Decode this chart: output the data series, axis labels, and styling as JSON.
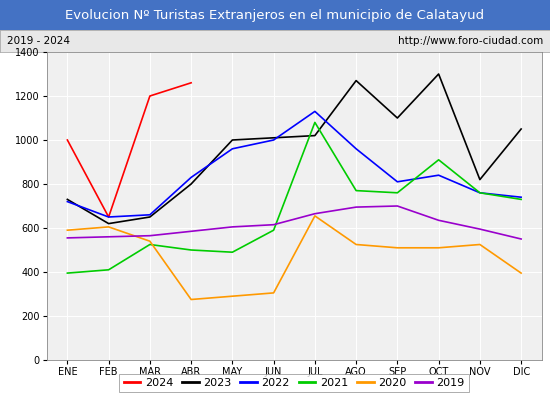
{
  "title": "Evolucion Nº Turistas Extranjeros en el municipio de Calatayud",
  "subtitle_left": "2019 - 2024",
  "subtitle_right": "http://www.foro-ciudad.com",
  "title_bg_color": "#4472c4",
  "title_text_color": "#ffffff",
  "subtitle_bg_color": "#e8e8e8",
  "plot_bg_color": "#f0f0f0",
  "outer_bg_color": "#ffffff",
  "months": [
    "ENE",
    "FEB",
    "MAR",
    "ABR",
    "MAY",
    "JUN",
    "JUL",
    "AGO",
    "SEP",
    "OCT",
    "NOV",
    "DIC"
  ],
  "ylim": [
    0,
    1400
  ],
  "yticks": [
    0,
    200,
    400,
    600,
    800,
    1000,
    1200,
    1400
  ],
  "series": {
    "2024": {
      "color": "#ff0000",
      "data": [
        1000,
        650,
        1200,
        1260,
        null,
        null,
        null,
        null,
        null,
        null,
        null,
        null
      ]
    },
    "2023": {
      "color": "#000000",
      "data": [
        730,
        620,
        650,
        800,
        1000,
        1010,
        1020,
        1270,
        1100,
        1300,
        820,
        1050
      ]
    },
    "2022": {
      "color": "#0000ff",
      "data": [
        720,
        650,
        660,
        830,
        960,
        1000,
        1130,
        960,
        810,
        840,
        760,
        740
      ]
    },
    "2021": {
      "color": "#00cc00",
      "data": [
        395,
        410,
        525,
        500,
        490,
        590,
        1080,
        770,
        760,
        910,
        760,
        730
      ]
    },
    "2020": {
      "color": "#ff9900",
      "data": [
        590,
        605,
        540,
        275,
        290,
        305,
        655,
        525,
        510,
        510,
        525,
        395
      ]
    },
    "2019": {
      "color": "#9900cc",
      "data": [
        555,
        560,
        565,
        585,
        605,
        615,
        665,
        695,
        700,
        635,
        595,
        550
      ]
    }
  },
  "series_order": [
    "2024",
    "2023",
    "2022",
    "2021",
    "2020",
    "2019"
  ],
  "line_width": 1.2,
  "tick_fontsize": 7,
  "legend_fontsize": 8
}
